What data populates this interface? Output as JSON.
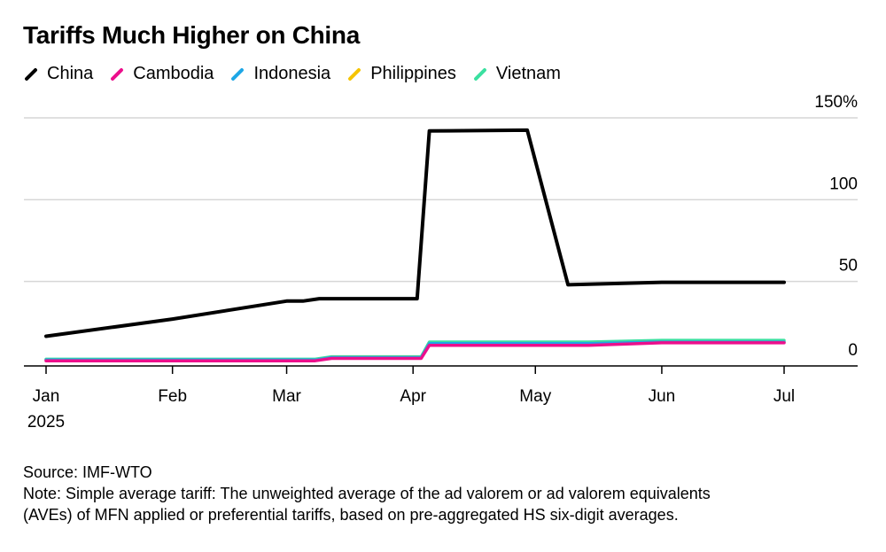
{
  "chart_data": {
    "type": "line",
    "title": "Tariffs Much Higher on China",
    "xlabel": "",
    "ylabel": "",
    "ylim": [
      0,
      150
    ],
    "yticks": [
      0,
      50,
      100,
      150
    ],
    "ytick_labels": [
      "0",
      "50",
      "100",
      "150%"
    ],
    "x_ticks": [
      {
        "label": "Jan",
        "sublabel": "2025",
        "day": 0
      },
      {
        "label": "Feb",
        "sublabel": "",
        "day": 31
      },
      {
        "label": "Mar",
        "sublabel": "",
        "day": 59
      },
      {
        "label": "Apr",
        "sublabel": "",
        "day": 90
      },
      {
        "label": "May",
        "sublabel": "",
        "day": 120
      },
      {
        "label": "Jun",
        "sublabel": "",
        "day": 151
      },
      {
        "label": "Jul",
        "sublabel": "",
        "day": 181
      }
    ],
    "x_domain_days": [
      0,
      181
    ],
    "series": [
      {
        "name": "Vietnam",
        "color": "#3be0a0",
        "points": [
          [
            0,
            2.5
          ],
          [
            66,
            2.5
          ],
          [
            70,
            4
          ],
          [
            92,
            4
          ],
          [
            94,
            13
          ],
          [
            133,
            13
          ],
          [
            151,
            14
          ],
          [
            181,
            14
          ]
        ]
      },
      {
        "name": "Philippines",
        "color": "#f5c400",
        "points": [
          [
            0,
            2
          ],
          [
            66,
            2
          ],
          [
            70,
            3.5
          ],
          [
            92,
            3.5
          ],
          [
            94,
            12
          ],
          [
            133,
            12
          ],
          [
            151,
            13
          ],
          [
            181,
            13
          ]
        ]
      },
      {
        "name": "Indonesia",
        "color": "#1ea7e6",
        "points": [
          [
            0,
            2
          ],
          [
            66,
            2
          ],
          [
            70,
            3.5
          ],
          [
            92,
            3.5
          ],
          [
            94,
            12
          ],
          [
            133,
            12
          ],
          [
            151,
            13
          ],
          [
            181,
            13
          ]
        ]
      },
      {
        "name": "Cambodia",
        "color": "#ec0f8c",
        "points": [
          [
            0,
            1.5
          ],
          [
            66,
            1.5
          ],
          [
            70,
            3
          ],
          [
            92,
            3
          ],
          [
            94,
            11
          ],
          [
            133,
            11
          ],
          [
            151,
            12.5
          ],
          [
            181,
            12.5
          ]
        ]
      },
      {
        "name": "China",
        "color": "#000000",
        "points": [
          [
            0,
            16.5
          ],
          [
            31,
            27
          ],
          [
            59,
            38
          ],
          [
            63,
            38
          ],
          [
            67,
            39.5
          ],
          [
            91,
            39.5
          ],
          [
            94,
            142
          ],
          [
            118,
            142.5
          ],
          [
            128,
            48
          ],
          [
            151,
            49.5
          ],
          [
            181,
            49.5
          ]
        ]
      }
    ],
    "legend_order": [
      "China",
      "Cambodia",
      "Indonesia",
      "Philippines",
      "Vietnam"
    ]
  },
  "legend": [
    {
      "label": "China",
      "color": "#000000"
    },
    {
      "label": "Cambodia",
      "color": "#ec0f8c"
    },
    {
      "label": "Indonesia",
      "color": "#1ea7e6"
    },
    {
      "label": "Philippines",
      "color": "#f5c400"
    },
    {
      "label": "Vietnam",
      "color": "#3be0a0"
    }
  ],
  "footer": {
    "source": "Source: IMF-WTO",
    "note_line1": "Note: Simple average tariff: The unweighted average of the ad valorem or ad valorem equivalents",
    "note_line2": "(AVEs) of MFN applied or preferential tariffs, based on pre-aggregated HS six-digit averages."
  }
}
